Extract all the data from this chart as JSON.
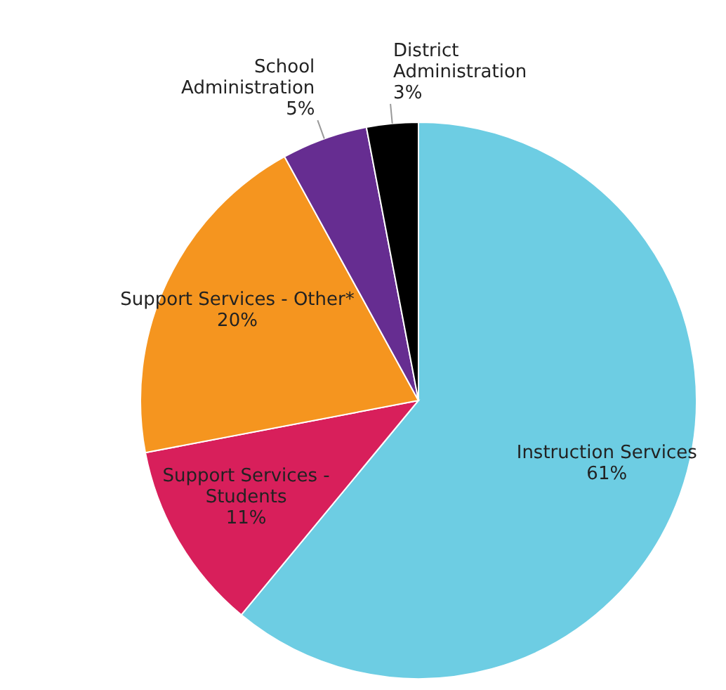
{
  "chart_data": {
    "type": "pie",
    "categories": [
      "Instruction Services",
      "Support Services - Students",
      "Support Services - Other*",
      "School Administration",
      "District Administration"
    ],
    "values": [
      61,
      11,
      20,
      5,
      3
    ],
    "colors": [
      "#6dcde3",
      "#d81f5b",
      "#f5951f",
      "#662d91",
      "#000000"
    ],
    "value_labels": [
      "61%",
      "11%",
      "20%",
      "5%",
      "3%"
    ],
    "legend": false
  }
}
